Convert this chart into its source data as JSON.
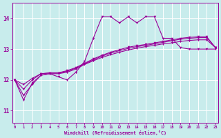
{
  "xlabel": "Windchill (Refroidissement éolien,°C)",
  "bg_color": "#c8ecec",
  "line_color": "#990099",
  "grid_color": "#ffffff",
  "x_ticks": [
    0,
    1,
    2,
    3,
    4,
    5,
    6,
    7,
    8,
    9,
    10,
    11,
    12,
    13,
    14,
    15,
    16,
    17,
    18,
    19,
    20,
    21,
    22,
    23
  ],
  "y_ticks": [
    11,
    12,
    13,
    14
  ],
  "ylim": [
    10.6,
    14.5
  ],
  "xlim": [
    -0.3,
    23.3
  ],
  "line1_x": [
    0,
    1,
    2,
    3,
    4,
    5,
    6,
    7,
    8,
    9,
    10,
    11,
    12,
    13,
    14,
    15,
    16,
    17,
    18,
    19,
    20,
    21,
    22,
    23
  ],
  "line1_y": [
    12.0,
    11.35,
    11.9,
    12.15,
    12.2,
    12.1,
    12.0,
    12.25,
    12.6,
    13.35,
    14.05,
    14.05,
    13.85,
    14.05,
    13.85,
    14.05,
    14.05,
    13.35,
    13.35,
    13.05,
    13.0,
    13.0,
    13.0,
    13.0
  ],
  "line2_x": [
    0,
    1,
    2,
    3,
    4,
    5,
    6,
    7,
    8,
    9,
    10,
    11,
    12,
    13,
    14,
    15,
    16,
    17,
    18,
    19,
    20,
    21,
    22,
    23
  ],
  "line2_y": [
    12.0,
    11.5,
    11.85,
    12.15,
    12.2,
    12.2,
    12.25,
    12.35,
    12.5,
    12.62,
    12.73,
    12.82,
    12.9,
    12.97,
    13.03,
    13.08,
    13.12,
    13.17,
    13.2,
    13.25,
    13.28,
    13.3,
    13.3,
    13.05
  ],
  "line3_x": [
    0,
    1,
    2,
    3,
    4,
    5,
    6,
    7,
    8,
    9,
    10,
    11,
    12,
    13,
    14,
    15,
    16,
    17,
    18,
    19,
    20,
    21,
    22,
    23
  ],
  "line3_y": [
    12.0,
    11.7,
    12.0,
    12.2,
    12.22,
    12.22,
    12.28,
    12.38,
    12.52,
    12.65,
    12.77,
    12.87,
    12.95,
    13.02,
    13.08,
    13.12,
    13.17,
    13.22,
    13.27,
    13.32,
    13.35,
    13.37,
    13.37,
    13.05
  ],
  "line4_x": [
    0,
    1,
    2,
    3,
    4,
    5,
    6,
    7,
    8,
    9,
    10,
    11,
    12,
    13,
    14,
    15,
    16,
    17,
    18,
    19,
    20,
    21,
    22,
    23
  ],
  "line4_y": [
    12.0,
    11.85,
    12.05,
    12.2,
    12.23,
    12.23,
    12.3,
    12.4,
    12.54,
    12.68,
    12.8,
    12.9,
    12.98,
    13.06,
    13.11,
    13.15,
    13.2,
    13.25,
    13.3,
    13.35,
    13.38,
    13.4,
    13.4,
    13.05
  ]
}
